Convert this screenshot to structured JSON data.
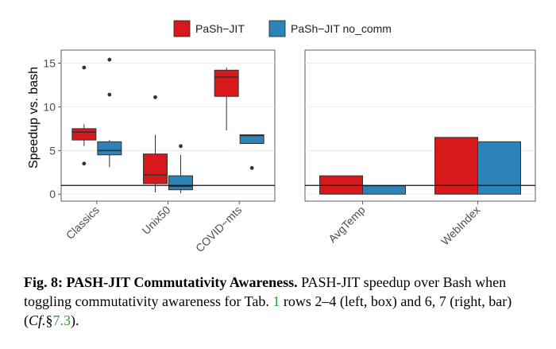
{
  "chart_data": [
    {
      "type": "box",
      "panel": "left",
      "ylabel": "Speedup vs. bash",
      "ylim": [
        -0.8,
        16.5
      ],
      "yticks": [
        0,
        5,
        10,
        15
      ],
      "reference_line": 1,
      "grid": true,
      "categories": [
        "Classics",
        "Unix50",
        "COVID−mts"
      ],
      "series": [
        {
          "name": "PaSh−JIT",
          "color": "#d7191c",
          "boxes": [
            {
              "category": "Classics",
              "whisker_low": 5.5,
              "q1": 6.2,
              "median": 7.1,
              "q3": 7.5,
              "whisker_high": 8.0,
              "outliers": [
                14.5,
                3.5
              ]
            },
            {
              "category": "Unix50",
              "whisker_low": 0.2,
              "q1": 1.2,
              "median": 2.2,
              "q3": 4.6,
              "whisker_high": 6.8,
              "outliers": [
                11.1
              ]
            },
            {
              "category": "COVID−mts",
              "whisker_low": 7.3,
              "q1": 11.2,
              "median": 13.4,
              "q3": 14.2,
              "whisker_high": 14.5,
              "outliers": []
            }
          ]
        },
        {
          "name": "PaSh−JIT no_comm",
          "color": "#2b83ba",
          "boxes": [
            {
              "category": "Classics",
              "whisker_low": 3.1,
              "q1": 4.5,
              "median": 5.0,
              "q3": 6.0,
              "whisker_high": 6.2,
              "outliers": [
                15.4,
                11.4
              ]
            },
            {
              "category": "Unix50",
              "whisker_low": 0.1,
              "q1": 0.5,
              "median": 0.9,
              "q3": 2.1,
              "whisker_high": 4.5,
              "outliers": [
                5.5
              ]
            },
            {
              "category": "COVID−mts",
              "whisker_low": 5.8,
              "q1": 5.8,
              "median": 6.7,
              "q3": 6.8,
              "whisker_high": 6.8,
              "outliers": [
                3.0
              ]
            }
          ]
        }
      ]
    },
    {
      "type": "bar",
      "panel": "right",
      "ylim": [
        -0.8,
        16.5
      ],
      "reference_line": 1,
      "grid": true,
      "categories": [
        "AvgTemp",
        "WebIndex"
      ],
      "series": [
        {
          "name": "PaSh−JIT",
          "color": "#d7191c",
          "values": [
            2.1,
            6.5
          ]
        },
        {
          "name": "PaSh−JIT no_comm",
          "color": "#2b83ba",
          "values": [
            0.95,
            6.0
          ]
        }
      ]
    }
  ],
  "legend": {
    "position": "top",
    "items": [
      {
        "label": "PaSh−JIT",
        "color": "#d7191c"
      },
      {
        "label": "PaSh−JIT no_comm",
        "color": "#2b83ba"
      }
    ]
  },
  "caption": {
    "label": "Fig. 8: PASH-JIT Commutativity Awareness.",
    "text1": " PASH-JIT speedup over Bash when toggling commutativity awareness for Tab. ",
    "ref1": "1",
    "text2": " rows 2–4 (left, box) and 6, 7 (right, bar) (",
    "cf": "Cf.",
    "sect": "§",
    "ref2": "7.3",
    "text3": ")."
  }
}
